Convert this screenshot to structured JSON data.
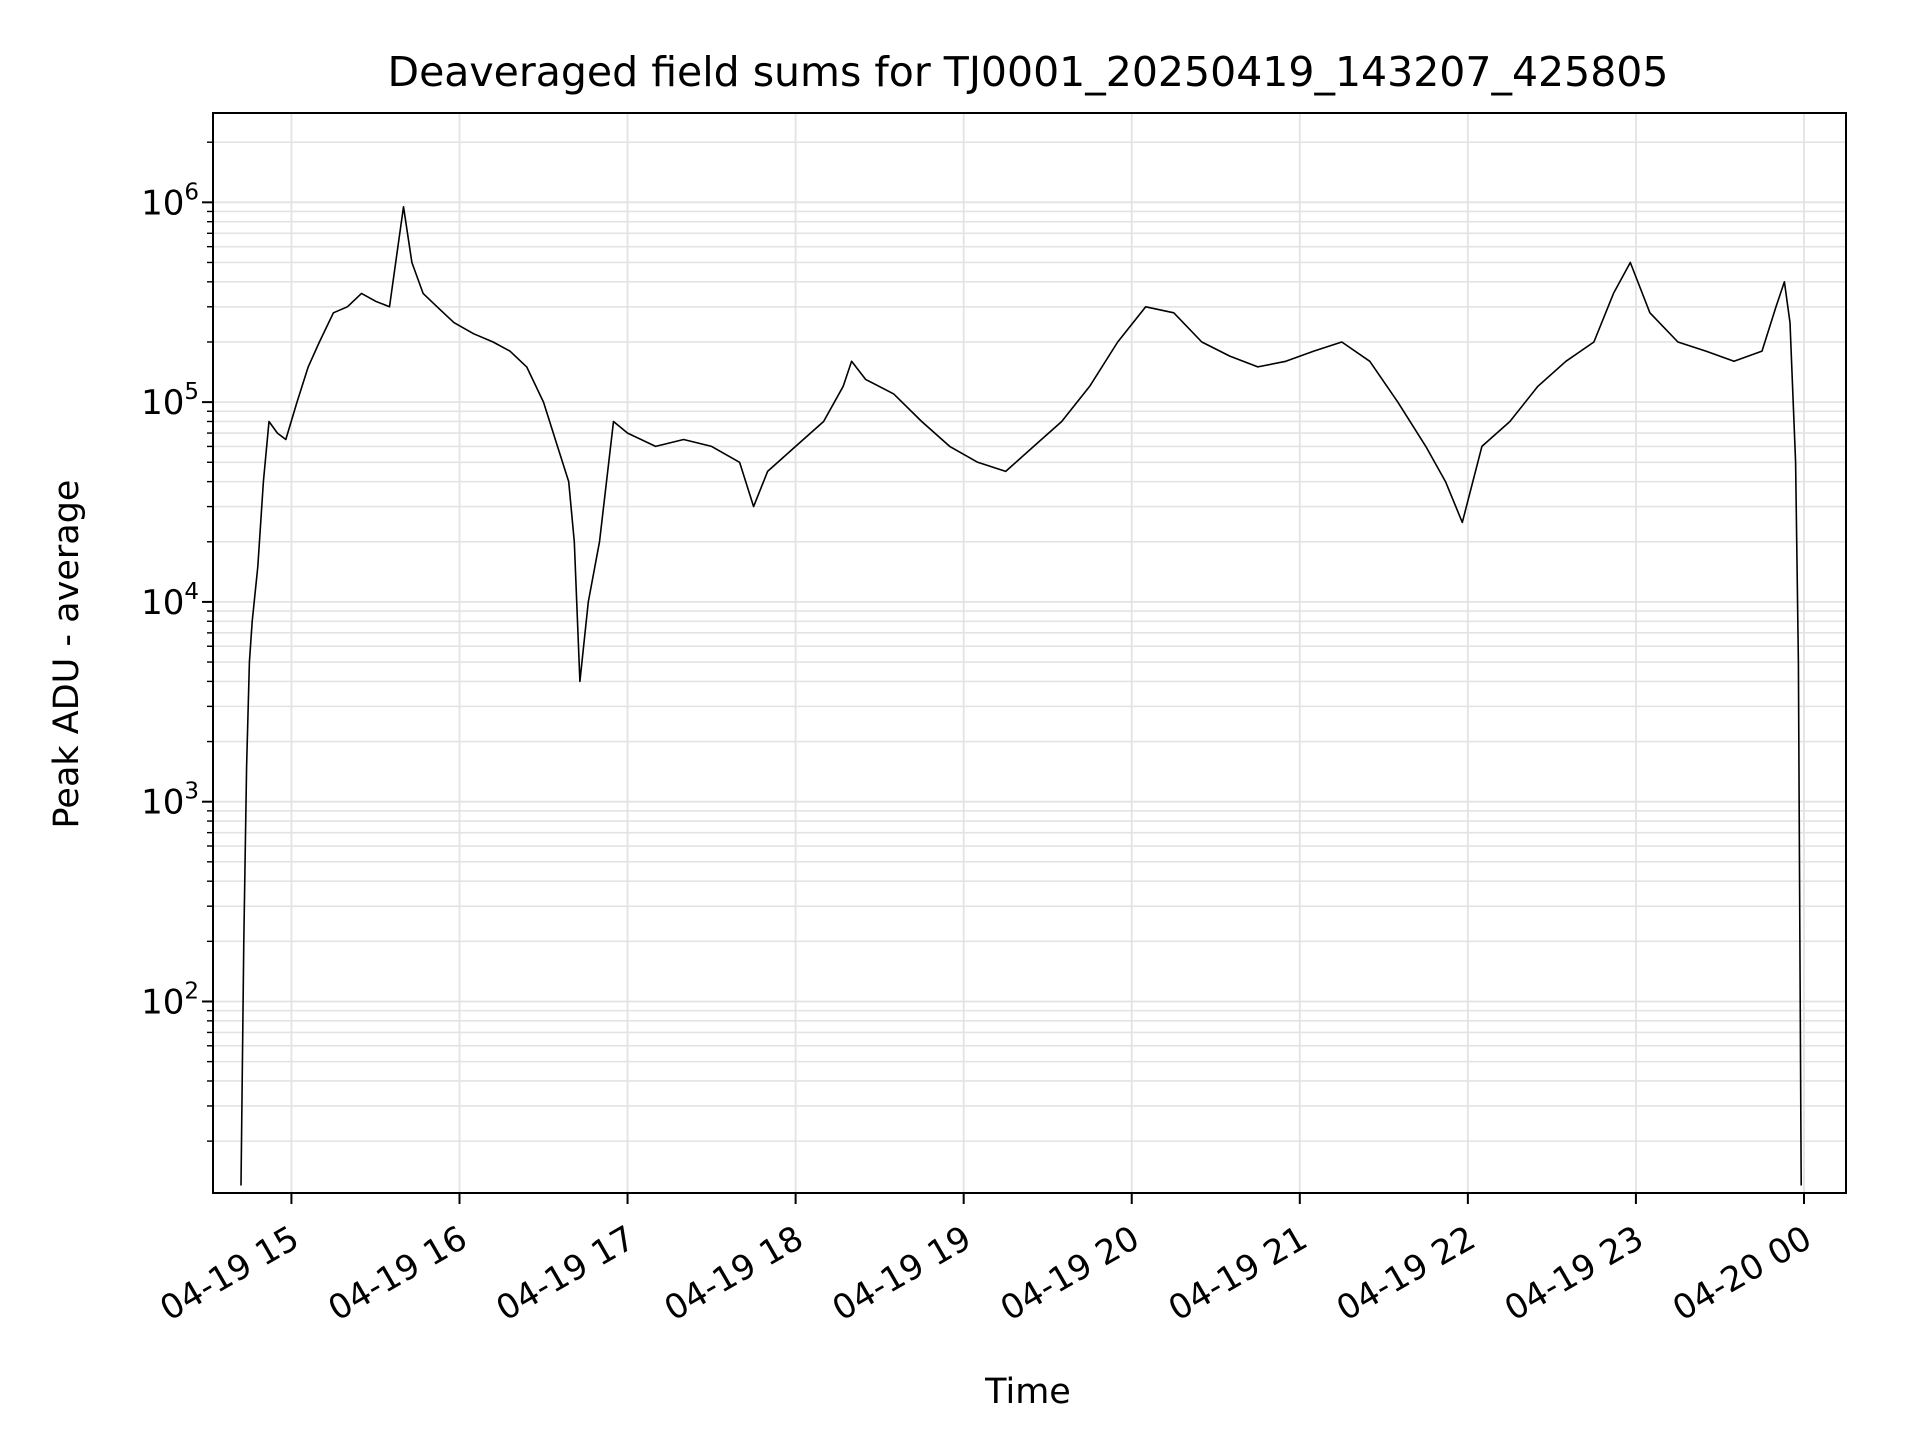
{
  "chart_data": {
    "type": "line",
    "title": "Deaveraged field sums for TJ0001_20250419_143207_425805",
    "xlabel": "Time",
    "ylabel": "Peak ADU - average",
    "yscale": "log",
    "ylim": [
      11,
      2800000
    ],
    "xlim": [
      "2025-04-19 14:32",
      "2025-04-20 00:15"
    ],
    "grid": true,
    "line_color": "#000000",
    "grid_color": "#e3e3e3",
    "x_ticks": [
      "2025-04-19 15:00",
      "2025-04-19 16:00",
      "2025-04-19 17:00",
      "2025-04-19 18:00",
      "2025-04-19 19:00",
      "2025-04-19 20:00",
      "2025-04-19 21:00",
      "2025-04-19 22:00",
      "2025-04-19 23:00",
      "2025-04-20 00:00"
    ],
    "x_tick_labels": [
      "04-19 15",
      "04-19 16",
      "04-19 17",
      "04-19 18",
      "04-19 19",
      "04-19 20",
      "04-19 21",
      "04-19 22",
      "04-19 23",
      "04-20 00"
    ],
    "y_ticks": [
      {
        "value": 100,
        "base": "10",
        "exp": "2"
      },
      {
        "value": 1000,
        "base": "10",
        "exp": "3"
      },
      {
        "value": 10000,
        "base": "10",
        "exp": "4"
      },
      {
        "value": 100000,
        "base": "10",
        "exp": "5"
      },
      {
        "value": 1000000,
        "base": "10",
        "exp": "6"
      }
    ],
    "series": [
      {
        "x": [
          "2025-04-19 14:42",
          "2025-04-19 14:43",
          "2025-04-19 14:44",
          "2025-04-19 14:45",
          "2025-04-19 14:46",
          "2025-04-19 14:48",
          "2025-04-19 14:50",
          "2025-04-19 14:52",
          "2025-04-19 14:55",
          "2025-04-19 14:58",
          "2025-04-19 15:02",
          "2025-04-19 15:06",
          "2025-04-19 15:10",
          "2025-04-19 15:15",
          "2025-04-19 15:20",
          "2025-04-19 15:25",
          "2025-04-19 15:30",
          "2025-04-19 15:35",
          "2025-04-19 15:38",
          "2025-04-19 15:40",
          "2025-04-19 15:43",
          "2025-04-19 15:47",
          "2025-04-19 15:52",
          "2025-04-19 15:58",
          "2025-04-19 16:05",
          "2025-04-19 16:12",
          "2025-04-19 16:18",
          "2025-04-19 16:24",
          "2025-04-19 16:30",
          "2025-04-19 16:35",
          "2025-04-19 16:39",
          "2025-04-19 16:41",
          "2025-04-19 16:43",
          "2025-04-19 16:46",
          "2025-04-19 16:50",
          "2025-04-19 16:55",
          "2025-04-19 17:00",
          "2025-04-19 17:10",
          "2025-04-19 17:20",
          "2025-04-19 17:30",
          "2025-04-19 17:40",
          "2025-04-19 17:45",
          "2025-04-19 17:50",
          "2025-04-19 18:00",
          "2025-04-19 18:10",
          "2025-04-19 18:17",
          "2025-04-19 18:20",
          "2025-04-19 18:25",
          "2025-04-19 18:35",
          "2025-04-19 18:45",
          "2025-04-19 18:55",
          "2025-04-19 19:05",
          "2025-04-19 19:15",
          "2025-04-19 19:25",
          "2025-04-19 19:35",
          "2025-04-19 19:45",
          "2025-04-19 19:55",
          "2025-04-19 20:05",
          "2025-04-19 20:15",
          "2025-04-19 20:25",
          "2025-04-19 20:35",
          "2025-04-19 20:45",
          "2025-04-19 20:55",
          "2025-04-19 21:05",
          "2025-04-19 21:15",
          "2025-04-19 21:25",
          "2025-04-19 21:35",
          "2025-04-19 21:45",
          "2025-04-19 21:52",
          "2025-04-19 21:58",
          "2025-04-19 22:05",
          "2025-04-19 22:15",
          "2025-04-19 22:25",
          "2025-04-19 22:35",
          "2025-04-19 22:45",
          "2025-04-19 22:52",
          "2025-04-19 22:58",
          "2025-04-19 23:05",
          "2025-04-19 23:15",
          "2025-04-19 23:25",
          "2025-04-19 23:35",
          "2025-04-19 23:45",
          "2025-04-19 23:50",
          "2025-04-19 23:53",
          "2025-04-19 23:55",
          "2025-04-19 23:57",
          "2025-04-19 23:58",
          "2025-04-19 23:59"
        ],
        "y": [
          12,
          200,
          1500,
          5000,
          8000,
          15000,
          40000,
          80000,
          70000,
          65000,
          100000,
          150000,
          200000,
          280000,
          300000,
          350000,
          320000,
          300000,
          600000,
          950000,
          500000,
          350000,
          300000,
          250000,
          220000,
          200000,
          180000,
          150000,
          100000,
          60000,
          40000,
          20000,
          4000,
          10000,
          20000,
          80000,
          70000,
          60000,
          65000,
          60000,
          50000,
          30000,
          45000,
          60000,
          80000,
          120000,
          160000,
          130000,
          110000,
          80000,
          60000,
          50000,
          45000,
          60000,
          80000,
          120000,
          200000,
          300000,
          280000,
          200000,
          170000,
          150000,
          160000,
          180000,
          200000,
          160000,
          100000,
          60000,
          40000,
          25000,
          60000,
          80000,
          120000,
          160000,
          200000,
          350000,
          500000,
          280000,
          200000,
          180000,
          160000,
          180000,
          300000,
          400000,
          250000,
          50000,
          5000,
          12
        ]
      }
    ]
  }
}
